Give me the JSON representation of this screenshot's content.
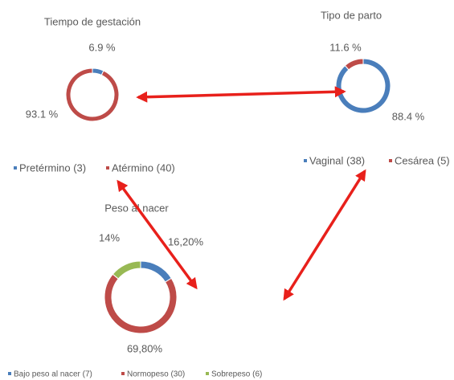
{
  "chart_data": [
    {
      "type": "pie",
      "donut": true,
      "title": "Tiempo de gestación",
      "categories": [
        "Pretérmino (3)",
        "Atérmino (40)"
      ],
      "values": [
        6.9,
        93.1
      ],
      "value_labels": [
        "6.9 %",
        "93.1 %"
      ],
      "colors": [
        "#4a7ebb",
        "#be4b48"
      ]
    },
    {
      "type": "pie",
      "donut": true,
      "title": "Tipo de parto",
      "categories": [
        "Vaginal (38)",
        "Cesárea (5)"
      ],
      "values": [
        88.4,
        11.6
      ],
      "value_labels": [
        "88.4 %",
        "11.6 %"
      ],
      "colors": [
        "#4a7ebb",
        "#be4b48"
      ]
    },
    {
      "type": "pie",
      "donut": true,
      "title": "Peso al nacer",
      "categories": [
        "Bajo peso al nacer (7)",
        "Normopeso (30)",
        "Sobrepeso (6)"
      ],
      "values": [
        16.2,
        69.8,
        14
      ],
      "value_labels": [
        "16,20%",
        "69,80%",
        "14%"
      ],
      "colors": [
        "#4a7ebb",
        "#be4b48",
        "#98b954"
      ]
    }
  ]
}
